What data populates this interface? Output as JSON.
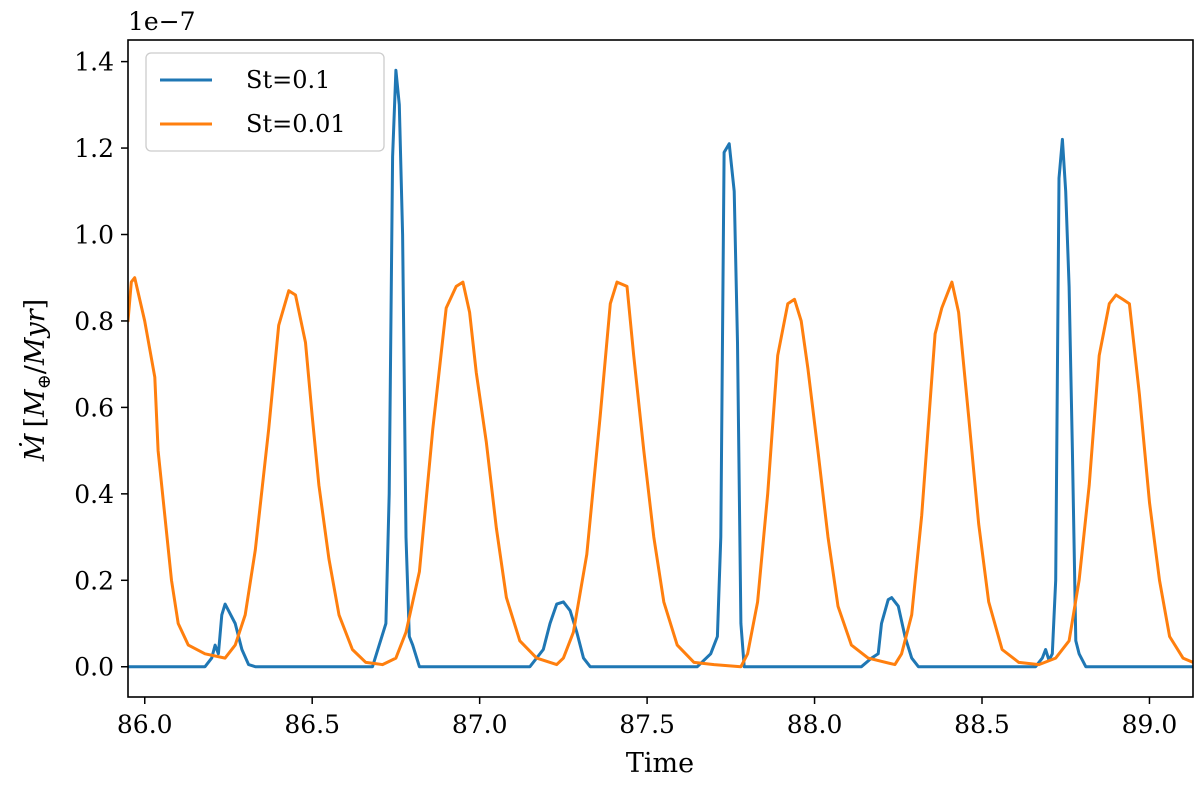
{
  "chart_data": {
    "type": "line",
    "xlabel": "Time",
    "ylabel_parts": {
      "mdot": "Ṁ",
      "open": "[",
      "m": "M",
      "sub": "⊕",
      "slash": "/",
      "myr": "Myr",
      "close": "]"
    },
    "y_offset_text": "1e−7",
    "xlim": [
      85.95,
      89.13
    ],
    "ylim": [
      -0.07,
      1.45
    ],
    "x_ticks": [
      86.0,
      86.5,
      87.0,
      87.5,
      88.0,
      88.5,
      89.0
    ],
    "x_tick_labels": [
      "86.0",
      "86.5",
      "87.0",
      "87.5",
      "88.0",
      "88.5",
      "89.0"
    ],
    "y_ticks": [
      0.0,
      0.2,
      0.4,
      0.6,
      0.8,
      1.0,
      1.2,
      1.4
    ],
    "y_tick_labels": [
      "0.0",
      "0.2",
      "0.4",
      "0.6",
      "0.8",
      "1.0",
      "1.2",
      "1.4"
    ],
    "grid": false,
    "legend_position": "top-left",
    "series": [
      {
        "name": "St=0.1",
        "color": "#1f77b4",
        "points": [
          [
            85.95,
            0.0
          ],
          [
            86.18,
            0.0
          ],
          [
            86.2,
            0.02
          ],
          [
            86.21,
            0.05
          ],
          [
            86.22,
            0.03
          ],
          [
            86.23,
            0.12
          ],
          [
            86.24,
            0.145
          ],
          [
            86.25,
            0.13
          ],
          [
            86.27,
            0.1
          ],
          [
            86.29,
            0.04
          ],
          [
            86.31,
            0.005
          ],
          [
            86.33,
            0.0
          ],
          [
            86.68,
            0.0
          ],
          [
            86.7,
            0.05
          ],
          [
            86.72,
            0.1
          ],
          [
            86.73,
            0.4
          ],
          [
            86.74,
            1.18
          ],
          [
            86.75,
            1.38
          ],
          [
            86.76,
            1.3
          ],
          [
            86.77,
            1.0
          ],
          [
            86.78,
            0.3
          ],
          [
            86.79,
            0.07
          ],
          [
            86.8,
            0.05
          ],
          [
            86.82,
            0.0
          ],
          [
            87.15,
            0.0
          ],
          [
            87.19,
            0.04
          ],
          [
            87.21,
            0.1
          ],
          [
            87.23,
            0.145
          ],
          [
            87.25,
            0.15
          ],
          [
            87.27,
            0.13
          ],
          [
            87.29,
            0.08
          ],
          [
            87.31,
            0.02
          ],
          [
            87.33,
            0.0
          ],
          [
            87.65,
            0.0
          ],
          [
            87.69,
            0.03
          ],
          [
            87.71,
            0.07
          ],
          [
            87.72,
            0.3
          ],
          [
            87.73,
            1.19
          ],
          [
            87.745,
            1.21
          ],
          [
            87.76,
            1.1
          ],
          [
            87.77,
            0.75
          ],
          [
            87.78,
            0.1
          ],
          [
            87.79,
            0.0
          ],
          [
            88.14,
            0.0
          ],
          [
            88.17,
            0.02
          ],
          [
            88.19,
            0.03
          ],
          [
            88.2,
            0.1
          ],
          [
            88.22,
            0.155
          ],
          [
            88.23,
            0.16
          ],
          [
            88.25,
            0.14
          ],
          [
            88.27,
            0.07
          ],
          [
            88.29,
            0.02
          ],
          [
            88.31,
            0.0
          ],
          [
            88.66,
            0.0
          ],
          [
            88.68,
            0.02
          ],
          [
            88.69,
            0.04
          ],
          [
            88.7,
            0.015
          ],
          [
            88.71,
            0.03
          ],
          [
            88.72,
            0.2
          ],
          [
            88.73,
            1.13
          ],
          [
            88.74,
            1.22
          ],
          [
            88.75,
            1.1
          ],
          [
            88.76,
            0.88
          ],
          [
            88.77,
            0.5
          ],
          [
            88.78,
            0.06
          ],
          [
            88.79,
            0.03
          ],
          [
            88.81,
            0.0
          ],
          [
            89.13,
            0.0
          ]
        ]
      },
      {
        "name": "St=0.01",
        "color": "#ff7f0e",
        "points": [
          [
            85.95,
            0.8
          ],
          [
            85.96,
            0.89
          ],
          [
            85.97,
            0.9
          ],
          [
            86.0,
            0.8
          ],
          [
            86.03,
            0.67
          ],
          [
            86.04,
            0.5
          ],
          [
            86.06,
            0.35
          ],
          [
            86.08,
            0.2
          ],
          [
            86.1,
            0.1
          ],
          [
            86.13,
            0.05
          ],
          [
            86.18,
            0.03
          ],
          [
            86.24,
            0.02
          ],
          [
            86.27,
            0.05
          ],
          [
            86.3,
            0.12
          ],
          [
            86.33,
            0.27
          ],
          [
            86.37,
            0.55
          ],
          [
            86.4,
            0.79
          ],
          [
            86.43,
            0.87
          ],
          [
            86.45,
            0.86
          ],
          [
            86.48,
            0.75
          ],
          [
            86.5,
            0.58
          ],
          [
            86.52,
            0.42
          ],
          [
            86.55,
            0.25
          ],
          [
            86.58,
            0.12
          ],
          [
            86.62,
            0.04
          ],
          [
            86.66,
            0.01
          ],
          [
            86.71,
            0.005
          ],
          [
            86.75,
            0.02
          ],
          [
            86.78,
            0.08
          ],
          [
            86.82,
            0.22
          ],
          [
            86.86,
            0.55
          ],
          [
            86.9,
            0.83
          ],
          [
            86.93,
            0.88
          ],
          [
            86.95,
            0.89
          ],
          [
            86.97,
            0.82
          ],
          [
            86.99,
            0.68
          ],
          [
            87.02,
            0.52
          ],
          [
            87.05,
            0.32
          ],
          [
            87.08,
            0.16
          ],
          [
            87.12,
            0.06
          ],
          [
            87.17,
            0.02
          ],
          [
            87.23,
            0.005
          ],
          [
            87.25,
            0.02
          ],
          [
            87.28,
            0.08
          ],
          [
            87.32,
            0.26
          ],
          [
            87.36,
            0.58
          ],
          [
            87.39,
            0.84
          ],
          [
            87.41,
            0.89
          ],
          [
            87.44,
            0.88
          ],
          [
            87.46,
            0.72
          ],
          [
            87.49,
            0.5
          ],
          [
            87.52,
            0.3
          ],
          [
            87.55,
            0.15
          ],
          [
            87.59,
            0.05
          ],
          [
            87.64,
            0.01
          ],
          [
            87.7,
            0.005
          ],
          [
            87.78,
            0.0
          ],
          [
            87.8,
            0.03
          ],
          [
            87.83,
            0.15
          ],
          [
            87.86,
            0.4
          ],
          [
            87.89,
            0.72
          ],
          [
            87.92,
            0.84
          ],
          [
            87.94,
            0.85
          ],
          [
            87.96,
            0.8
          ],
          [
            87.98,
            0.69
          ],
          [
            88.01,
            0.5
          ],
          [
            88.04,
            0.3
          ],
          [
            88.07,
            0.14
          ],
          [
            88.11,
            0.05
          ],
          [
            88.16,
            0.02
          ],
          [
            88.24,
            0.005
          ],
          [
            88.26,
            0.03
          ],
          [
            88.29,
            0.12
          ],
          [
            88.32,
            0.35
          ],
          [
            88.36,
            0.77
          ],
          [
            88.38,
            0.83
          ],
          [
            88.41,
            0.89
          ],
          [
            88.43,
            0.82
          ],
          [
            88.46,
            0.58
          ],
          [
            88.49,
            0.33
          ],
          [
            88.52,
            0.15
          ],
          [
            88.56,
            0.04
          ],
          [
            88.61,
            0.01
          ],
          [
            88.67,
            0.005
          ],
          [
            88.72,
            0.02
          ],
          [
            88.76,
            0.06
          ],
          [
            88.79,
            0.2
          ],
          [
            88.82,
            0.42
          ],
          [
            88.85,
            0.72
          ],
          [
            88.88,
            0.84
          ],
          [
            88.9,
            0.86
          ],
          [
            88.92,
            0.85
          ],
          [
            88.94,
            0.84
          ],
          [
            88.97,
            0.63
          ],
          [
            89.0,
            0.38
          ],
          [
            89.03,
            0.2
          ],
          [
            89.06,
            0.07
          ],
          [
            89.1,
            0.02
          ],
          [
            89.13,
            0.01
          ]
        ]
      }
    ]
  }
}
